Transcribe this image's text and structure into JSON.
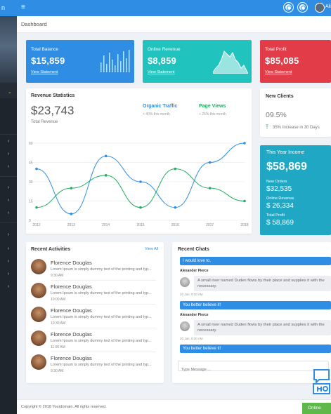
{
  "topbar": {
    "brand": "n",
    "menu_icon": "≡",
    "user_name": "Ali"
  },
  "page": {
    "title": "Dashboard"
  },
  "stats": [
    {
      "label": "Total Balance",
      "value": "$15,859",
      "link": "View Statement",
      "color": "#2f8de4"
    },
    {
      "label": "Online Revenue",
      "value": "$8,859",
      "link": "View Statement",
      "color": "#20c3bd"
    },
    {
      "label": "Total Profit",
      "value": "$85,085",
      "link": "View Statement",
      "color": "#e23c48"
    }
  ],
  "revenue": {
    "title": "Revenue Statistics",
    "amount": "$23,743",
    "sub": "Total Revenue",
    "organic": {
      "label": "Organic Traffic",
      "sub": "+ 40% this month",
      "color": "#2f8de4"
    },
    "pageviews": {
      "label": "Page Views",
      "sub": "+ 25% this month",
      "color": "#21ad62"
    }
  },
  "chart_data": {
    "type": "line",
    "x": [
      "2012",
      "2013",
      "2014",
      "2015",
      "2016",
      "2017",
      "2018"
    ],
    "series": [
      {
        "values": [
          40,
          5,
          50,
          30,
          10,
          45,
          60
        ]
      },
      {
        "values": [
          10,
          25,
          35,
          10,
          40,
          25,
          15
        ]
      }
    ],
    "yticks": [
      "0",
      "15",
      "30",
      "45",
      "60"
    ],
    "ylim": [
      0,
      60
    ],
    "grid": true
  },
  "new_clients": {
    "title": "New Clients",
    "percent": "09.5%",
    "note": "35% Increase in 30 Days"
  },
  "income": {
    "title": "This Year Income",
    "amount": "$58,869",
    "items": [
      {
        "label": "New Orders",
        "value": "$32,535"
      },
      {
        "label": "Online Revenue",
        "value": "$ 26,334"
      },
      {
        "label": "Total Profit",
        "value": "$ 58,869"
      }
    ]
  },
  "activities": {
    "title": "Recent Activities",
    "view_all": "View All",
    "items": [
      {
        "name": "Florence Douglas",
        "text": "Lorem Ipsum is simply dummy text of the printing and typ...",
        "time": "9:30 AM"
      },
      {
        "name": "Florence Douglas",
        "text": "Lorem Ipsum is simply dummy text of the printing and typ...",
        "time": "10:00 AM"
      },
      {
        "name": "Florence Douglas",
        "text": "Lorem Ipsum is simply dummy text of the printing and typ...",
        "time": "10:30 AM"
      },
      {
        "name": "Florence Douglas",
        "text": "Lorem Ipsum is simply dummy text of the printing and typ...",
        "time": "11:00 AM"
      },
      {
        "name": "Florence Douglas",
        "text": "Lorem Ipsum is simply dummy text of the printing and typ...",
        "time": "9:30 AM"
      }
    ]
  },
  "chats": {
    "title": "Recent Chats",
    "msg1": "I would love to.",
    "in1": {
      "name": "Alexander Pierce",
      "text": "A small river named Duden flows by their place and supplies it with the necessary.",
      "time": "20 Jan, 9:30 AM"
    },
    "msg2": "You better believe it!",
    "in2": {
      "name": "Alexander Pierce",
      "text": "A small river named Duden flows by their place and supplies it with the necessary.",
      "time": "20 Jan, 9:30 AM"
    },
    "msg3": "You better believe it!",
    "placeholder": "Type Message ..."
  },
  "footer": {
    "copyright": "Copyright © 2018 Yourdomain. All rights reserved."
  },
  "online": {
    "label": "Online"
  }
}
